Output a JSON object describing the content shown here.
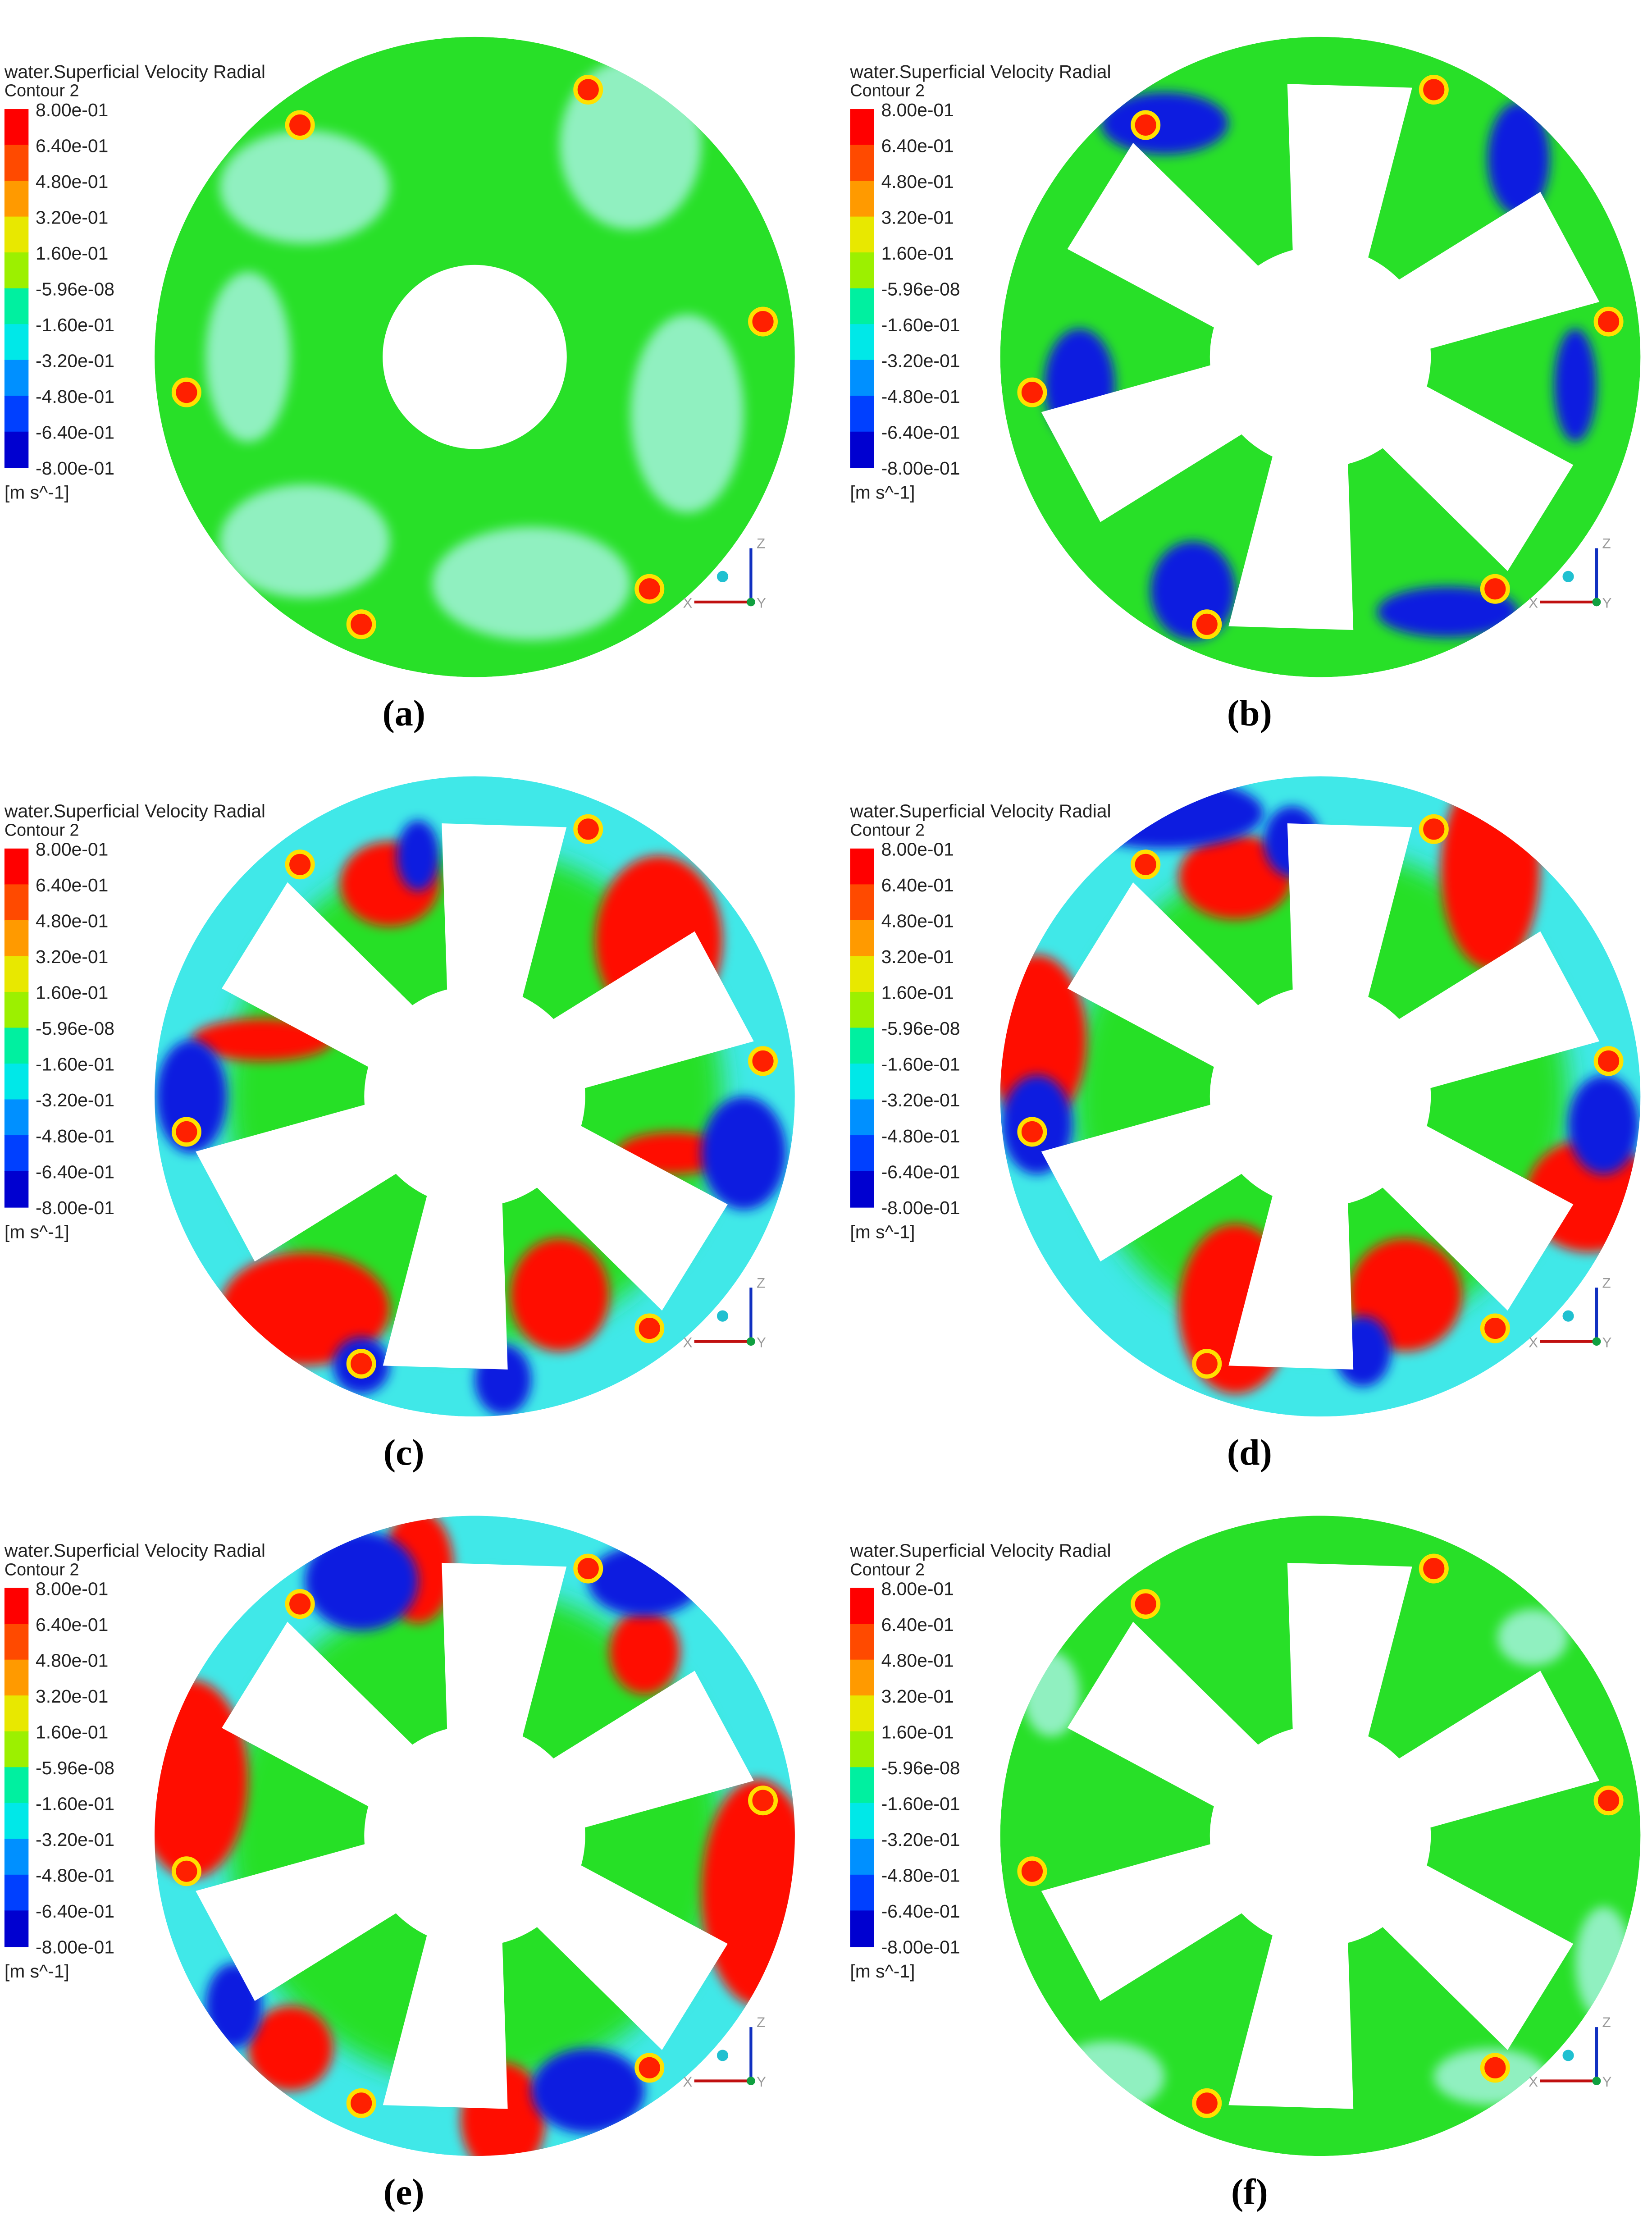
{
  "panels": [
    {
      "title": "water.Superficial Velocity Radial",
      "subtitle": "Contour 2",
      "legend_labels": [
        "8.00e-01",
        "6.40e-01",
        "4.80e-01",
        "3.20e-01",
        "1.60e-01",
        "-5.96e-08",
        "-1.60e-01",
        "-3.20e-01",
        "-4.80e-01",
        "-6.40e-01",
        "-8.00e-01"
      ],
      "unit": "[m s^-1]",
      "axes": [
        "Z",
        "X",
        "Y"
      ],
      "caption": "(a)"
    },
    {
      "title": "water.Superficial Velocity Radial",
      "subtitle": "Contour 2",
      "legend_labels": [
        "8.00e-01",
        "6.40e-01",
        "4.80e-01",
        "3.20e-01",
        "1.60e-01",
        "-5.96e-08",
        "-1.60e-01",
        "-3.20e-01",
        "-4.80e-01",
        "-6.40e-01",
        "-8.00e-01"
      ],
      "unit": "[m s^-1]",
      "axes": [
        "Z",
        "X",
        "Y"
      ],
      "caption": "(b)"
    },
    {
      "title": "water.Superficial Velocity Radial",
      "subtitle": "Contour 2",
      "legend_labels": [
        "8.00e-01",
        "6.40e-01",
        "4.80e-01",
        "3.20e-01",
        "1.60e-01",
        "-5.96e-08",
        "-1.60e-01",
        "-3.20e-01",
        "-4.80e-01",
        "-6.40e-01",
        "-8.00e-01"
      ],
      "unit": "[m s^-1]",
      "axes": [
        "Z",
        "X",
        "Y"
      ],
      "caption": "(c)"
    },
    {
      "title": "water.Superficial Velocity Radial",
      "subtitle": "Contour 2",
      "legend_labels": [
        "8.00e-01",
        "6.40e-01",
        "4.80e-01",
        "3.20e-01",
        "1.60e-01",
        "-5.96e-08",
        "-1.60e-01",
        "-3.20e-01",
        "-4.80e-01",
        "-6.40e-01",
        "-8.00e-01"
      ],
      "unit": "[m s^-1]",
      "axes": [
        "Z",
        "X",
        "Y"
      ],
      "caption": "(d)"
    },
    {
      "title": "water.Superficial Velocity Radial",
      "subtitle": "Contour 2",
      "legend_labels": [
        "8.00e-01",
        "6.40e-01",
        "4.80e-01",
        "3.20e-01",
        "1.60e-01",
        "-5.96e-08",
        "-1.60e-01",
        "-3.20e-01",
        "-4.80e-01",
        "-6.40e-01",
        "-8.00e-01"
      ],
      "unit": "[m s^-1]",
      "axes": [
        "Z",
        "X",
        "Y"
      ],
      "caption": "(e)"
    },
    {
      "title": "water.Superficial Velocity Radial",
      "subtitle": "Contour 2",
      "legend_labels": [
        "8.00e-01",
        "6.40e-01",
        "4.80e-01",
        "3.20e-01",
        "1.60e-01",
        "-5.96e-08",
        "-1.60e-01",
        "-3.20e-01",
        "-4.80e-01",
        "-6.40e-01",
        "-8.00e-01"
      ],
      "unit": "[m s^-1]",
      "axes": [
        "Z",
        "X",
        "Y"
      ],
      "caption": "(f)"
    }
  ]
}
